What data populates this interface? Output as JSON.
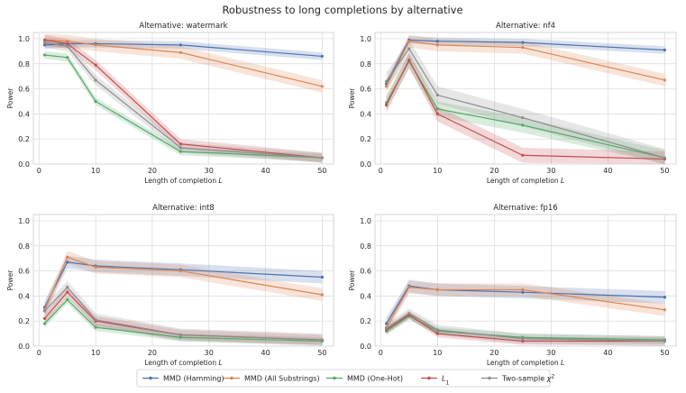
{
  "figure": {
    "suptitle": "Robustness to long completions by alternative",
    "xlabel": "Length of completion L",
    "ylabel": "Power"
  },
  "legend": [
    {
      "name": "MMD (Hamming)",
      "color": "#4c72b0"
    },
    {
      "name": "MMD (All Substrings)",
      "color": "#dd8452"
    },
    {
      "name": "MMD (One-Hot)",
      "color": "#55a868"
    },
    {
      "name": "L1",
      "color": "#c44e52"
    },
    {
      "name": "Two-sample χ2",
      "color": "#8c8c8c"
    }
  ],
  "chart_data": [
    {
      "type": "line",
      "title": "Alternative: watermark",
      "xlabel": "Length of completion L",
      "ylabel": "Power",
      "x": [
        1,
        5,
        10,
        25,
        50
      ],
      "xlim": [
        -1,
        52
      ],
      "ylim": [
        0,
        1.05
      ],
      "xticks": [
        0,
        10,
        20,
        30,
        40,
        50
      ],
      "yticks": [
        0.0,
        0.2,
        0.4,
        0.6,
        0.8,
        1.0
      ],
      "series": [
        {
          "name": "MMD (Hamming)",
          "values": [
            0.95,
            0.96,
            0.96,
            0.95,
            0.86
          ],
          "band": 0.03
        },
        {
          "name": "MMD (All Substrings)",
          "values": [
            0.99,
            0.98,
            0.95,
            0.89,
            0.62
          ],
          "band": 0.05
        },
        {
          "name": "MMD (One-Hot)",
          "values": [
            0.87,
            0.85,
            0.5,
            0.1,
            0.05
          ],
          "band": 0.03
        },
        {
          "name": "L1",
          "values": [
            0.99,
            0.96,
            0.79,
            0.16,
            0.05
          ],
          "band": 0.04
        },
        {
          "name": "Two-sample χ2",
          "values": [
            0.97,
            0.94,
            0.67,
            0.13,
            0.05
          ],
          "band": 0.04
        }
      ]
    },
    {
      "type": "line",
      "title": "Alternative: nf4",
      "xlabel": "Length of completion L",
      "ylabel": "Power",
      "x": [
        1,
        5,
        10,
        25,
        50
      ],
      "xlim": [
        -1,
        52
      ],
      "ylim": [
        0,
        1.05
      ],
      "xticks": [
        0,
        10,
        20,
        30,
        40,
        50
      ],
      "yticks": [
        0.0,
        0.2,
        0.4,
        0.6,
        0.8,
        1.0
      ],
      "series": [
        {
          "name": "MMD (Hamming)",
          "values": [
            0.64,
            0.99,
            0.98,
            0.97,
            0.91
          ],
          "band": 0.03
        },
        {
          "name": "MMD (All Substrings)",
          "values": [
            0.62,
            0.98,
            0.95,
            0.93,
            0.67
          ],
          "band": 0.05
        },
        {
          "name": "MMD (One-Hot)",
          "values": [
            0.49,
            0.82,
            0.44,
            0.31,
            0.05
          ],
          "band": 0.06
        },
        {
          "name": "L1",
          "values": [
            0.47,
            0.83,
            0.4,
            0.07,
            0.04
          ],
          "band": 0.06
        },
        {
          "name": "Two-sample χ2",
          "values": [
            0.66,
            0.92,
            0.55,
            0.37,
            0.05
          ],
          "band": 0.07
        }
      ]
    },
    {
      "type": "line",
      "title": "Alternative: int8",
      "xlabel": "Length of completion L",
      "ylabel": "Power",
      "x": [
        1,
        5,
        10,
        25,
        50
      ],
      "xlim": [
        -1,
        52
      ],
      "ylim": [
        0,
        1.05
      ],
      "xticks": [
        0,
        10,
        20,
        30,
        40,
        50
      ],
      "yticks": [
        0.0,
        0.2,
        0.4,
        0.6,
        0.8,
        1.0
      ],
      "series": [
        {
          "name": "MMD (Hamming)",
          "values": [
            0.31,
            0.67,
            0.64,
            0.61,
            0.55
          ],
          "band": 0.05
        },
        {
          "name": "MMD (All Substrings)",
          "values": [
            0.29,
            0.71,
            0.63,
            0.6,
            0.41
          ],
          "band": 0.05
        },
        {
          "name": "MMD (One-Hot)",
          "values": [
            0.18,
            0.37,
            0.15,
            0.07,
            0.04
          ],
          "band": 0.03
        },
        {
          "name": "L1",
          "values": [
            0.22,
            0.43,
            0.2,
            0.09,
            0.05
          ],
          "band": 0.04
        },
        {
          "name": "Two-sample χ2",
          "values": [
            0.28,
            0.47,
            0.21,
            0.09,
            0.05
          ],
          "band": 0.05
        }
      ]
    },
    {
      "type": "line",
      "title": "Alternative: fp16",
      "xlabel": "Length of completion L",
      "ylabel": "Power",
      "x": [
        1,
        5,
        10,
        25,
        50
      ],
      "xlim": [
        -1,
        52
      ],
      "ylim": [
        0,
        1.05
      ],
      "xticks": [
        0,
        10,
        20,
        30,
        40,
        50
      ],
      "yticks": [
        0.0,
        0.2,
        0.4,
        0.6,
        0.8,
        1.0
      ],
      "series": [
        {
          "name": "MMD (Hamming)",
          "values": [
            0.18,
            0.48,
            0.45,
            0.43,
            0.39
          ],
          "band": 0.05
        },
        {
          "name": "MMD (All Substrings)",
          "values": [
            0.15,
            0.47,
            0.45,
            0.45,
            0.29
          ],
          "band": 0.05
        },
        {
          "name": "MMD (One-Hot)",
          "values": [
            0.12,
            0.24,
            0.12,
            0.07,
            0.05
          ],
          "band": 0.03
        },
        {
          "name": "L1",
          "values": [
            0.13,
            0.25,
            0.1,
            0.04,
            0.04
          ],
          "band": 0.03
        },
        {
          "name": "Two-sample χ2",
          "values": [
            0.14,
            0.26,
            0.13,
            0.06,
            0.04
          ],
          "band": 0.04
        }
      ]
    }
  ]
}
